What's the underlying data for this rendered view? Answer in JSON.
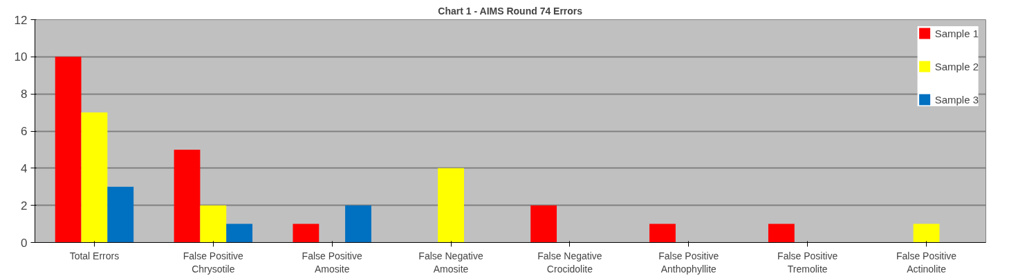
{
  "chart_data": {
    "type": "bar",
    "title": "Chart 1 - AIMS Round 74 Errors",
    "categories": [
      "Total Errors",
      "False Positive\nChrysotile",
      "False Positive\nAmosite",
      "False Negative\nAmosite",
      "False Negative\nCrocidolite",
      "False Positive\nAnthophyllite",
      "False Positive\nTremolite",
      "False Positive\nActinolite"
    ],
    "series": [
      {
        "name": "Sample 1",
        "color": "#ff0000",
        "values": [
          10,
          5,
          1,
          0,
          2,
          1,
          1,
          0
        ]
      },
      {
        "name": "Sample 2",
        "color": "#ffff00",
        "values": [
          7,
          2,
          0,
          4,
          0,
          0,
          0,
          1
        ]
      },
      {
        "name": "Sample 3",
        "color": "#0070c0",
        "values": [
          3,
          1,
          2,
          0,
          0,
          0,
          0,
          0
        ]
      }
    ],
    "ylim": [
      0,
      12
    ],
    "yticks": [
      0,
      2,
      4,
      6,
      8,
      10,
      12
    ],
    "grid": "y",
    "legend": "top right"
  }
}
